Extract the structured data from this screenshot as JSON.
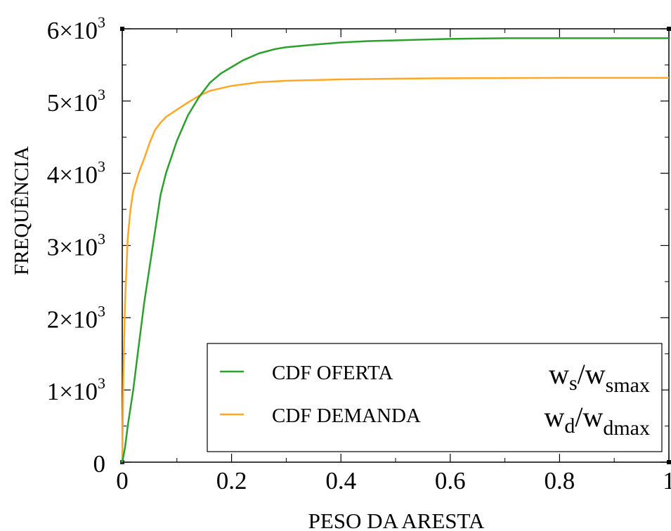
{
  "chart_data": {
    "type": "line",
    "xlabel": "PESO DA ARESTA",
    "ylabel": "FREQUÊNCIA",
    "xlim": [
      0,
      1
    ],
    "ylim": [
      0,
      6000
    ],
    "xticks": [
      {
        "value": 0,
        "label": "0"
      },
      {
        "value": 0.2,
        "label": "0.2"
      },
      {
        "value": 0.4,
        "label": "0.4"
      },
      {
        "value": 0.6,
        "label": "0.6"
      },
      {
        "value": 0.8,
        "label": "0.8"
      },
      {
        "value": 1,
        "label": "1"
      }
    ],
    "yticks": [
      {
        "value": 0,
        "mant": "0",
        "exp": ""
      },
      {
        "value": 1000,
        "mant": "1×10",
        "exp": "3"
      },
      {
        "value": 2000,
        "mant": "2×10",
        "exp": "3"
      },
      {
        "value": 3000,
        "mant": "3×10",
        "exp": "3"
      },
      {
        "value": 4000,
        "mant": "4×10",
        "exp": "3"
      },
      {
        "value": 5000,
        "mant": "5×10",
        "exp": "3"
      },
      {
        "value": 6000,
        "mant": "6×10",
        "exp": "3"
      }
    ],
    "grid": false,
    "legend_position": "bottom-right",
    "series": [
      {
        "name": "CDF OFERTA",
        "formula_main": "w",
        "formula_sub": "s",
        "formula_sep": "/w",
        "formula_sub2": "smax",
        "color": "#2ca02c",
        "x": [
          0,
          0.005,
          0.01,
          0.02,
          0.03,
          0.04,
          0.05,
          0.06,
          0.07,
          0.08,
          0.1,
          0.12,
          0.14,
          0.16,
          0.18,
          0.2,
          0.22,
          0.25,
          0.28,
          0.3,
          0.35,
          0.4,
          0.45,
          0.5,
          0.55,
          0.6,
          0.7,
          0.8,
          0.9,
          1.0
        ],
        "y": [
          0,
          200,
          500,
          1000,
          1600,
          2200,
          2700,
          3200,
          3700,
          4000,
          4450,
          4800,
          5050,
          5250,
          5380,
          5470,
          5560,
          5660,
          5720,
          5745,
          5780,
          5810,
          5830,
          5840,
          5850,
          5860,
          5870,
          5870,
          5870,
          5870
        ]
      },
      {
        "name": "CDF DEMANDA",
        "formula_main": "w",
        "formula_sub": "d",
        "formula_sep": "/w",
        "formula_sub2": "dmax",
        "color": "#ffa726",
        "x": [
          0,
          0.002,
          0.005,
          0.01,
          0.015,
          0.02,
          0.03,
          0.04,
          0.05,
          0.06,
          0.07,
          0.08,
          0.1,
          0.12,
          0.14,
          0.16,
          0.2,
          0.25,
          0.3,
          0.4,
          0.5,
          0.6,
          0.8,
          1.0
        ],
        "y": [
          0,
          1200,
          2200,
          3100,
          3500,
          3750,
          4000,
          4200,
          4420,
          4600,
          4700,
          4780,
          4880,
          4980,
          5070,
          5140,
          5210,
          5260,
          5280,
          5300,
          5310,
          5315,
          5320,
          5320
        ]
      }
    ]
  }
}
